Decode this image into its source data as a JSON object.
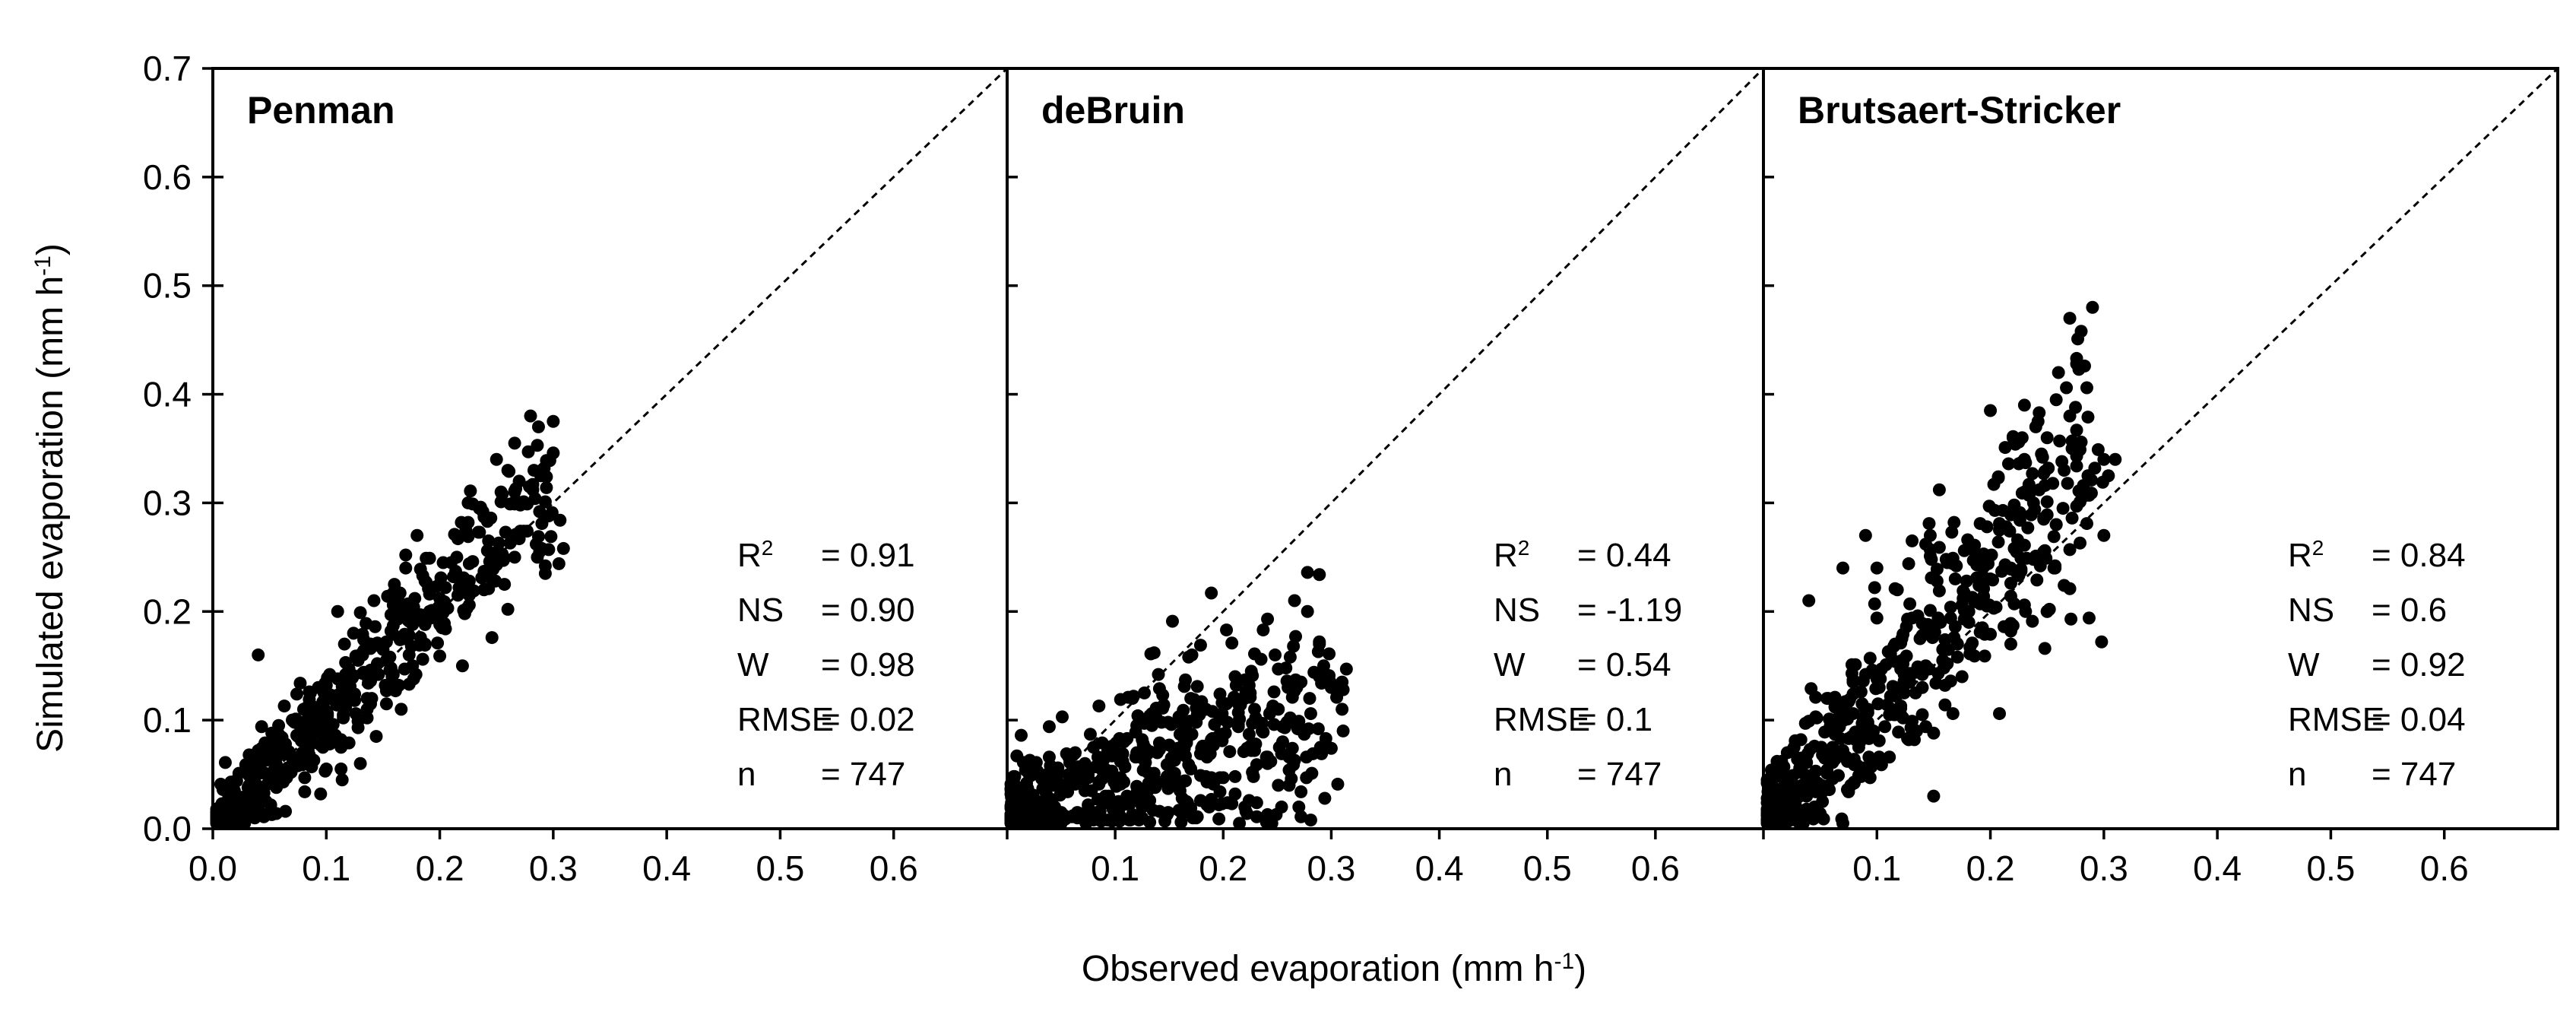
{
  "figure": {
    "ylabel": "Simulated evaporation (mm h",
    "ylabel_sup": "-1",
    "ylabel_end": ")",
    "xlabel": "Observed evaporation (mm h",
    "xlabel_sup": "-1",
    "xlabel_end": ")"
  },
  "chart_data": [
    {
      "type": "scatter",
      "title": "Penman",
      "xlim": [
        0,
        0.7
      ],
      "ylim": [
        0,
        0.7
      ],
      "x_tick_labels": [
        "0.0",
        "0.1",
        "0.2",
        "0.3",
        "0.4",
        "0.5",
        "0.6"
      ],
      "y_tick_labels": [
        "0.0",
        "0.1",
        "0.2",
        "0.3",
        "0.4",
        "0.5",
        "0.6",
        "0.7"
      ],
      "one_to_one_line": true,
      "stats": [
        {
          "label": "R",
          "sup": "2",
          "value": "= 0.91"
        },
        {
          "label": "NS",
          "sup": "",
          "value": "= 0.90"
        },
        {
          "label": "W",
          "sup": "",
          "value": "= 0.98"
        },
        {
          "label": "RMSE",
          "sup": "",
          "value": "= 0.02"
        },
        {
          "label": "n",
          "sup": "",
          "value": "= 747"
        }
      ],
      "generator": {
        "seed": 11,
        "n": 520,
        "slope": 1.07,
        "intercept": 0.0,
        "noise": 0.02,
        "noise_growth": 0.05,
        "xmax": 0.31
      },
      "outliers": [
        [
          0.04,
          0.16
        ],
        [
          0.28,
          0.38
        ],
        [
          0.3,
          0.375
        ],
        [
          0.22,
          0.15
        ],
        [
          0.13,
          0.06
        ],
        [
          0.25,
          0.34
        ],
        [
          0.26,
          0.33
        ],
        [
          0.27,
          0.32
        ],
        [
          0.225,
          0.3
        ],
        [
          0.235,
          0.295
        ],
        [
          0.11,
          0.2
        ],
        [
          0.16,
          0.225
        ],
        [
          0.17,
          0.24
        ]
      ],
      "x": [],
      "y": []
    },
    {
      "type": "scatter",
      "title": "deBruin",
      "xlim": [
        0,
        0.7
      ],
      "ylim": [
        0,
        0.7
      ],
      "x_tick_labels": [
        "",
        "0.1",
        "0.2",
        "0.3",
        "0.4",
        "0.5",
        "0.6"
      ],
      "y_tick_labels": [],
      "one_to_one_line": true,
      "stats": [
        {
          "label": "R",
          "sup": "2",
          "value": "= 0.44"
        },
        {
          "label": "NS",
          "sup": "",
          "value": "= -1.19"
        },
        {
          "label": "W",
          "sup": "",
          "value": "= 0.54"
        },
        {
          "label": "RMSE",
          "sup": "",
          "value": "= 0.1"
        },
        {
          "label": "n",
          "sup": "",
          "value": "= 747"
        }
      ],
      "generator": {
        "seed": 23,
        "n": 560,
        "slope": 0.4,
        "intercept": 0.0,
        "noise": 0.03,
        "noise_growth": 0.08,
        "xmax": 0.32
      },
      "outliers": [
        [
          0.31,
          0.135
        ],
        [
          0.3,
          0.13
        ],
        [
          0.28,
          0.12
        ],
        [
          0.26,
          0.13
        ],
        [
          0.2,
          0.115
        ],
        [
          0.17,
          0.12
        ],
        [
          0.22,
          0.02
        ],
        [
          0.27,
          0.02
        ],
        [
          0.02,
          0.01
        ],
        [
          0.05,
          0.005
        ]
      ],
      "x": [],
      "y": []
    },
    {
      "type": "scatter",
      "title": "Brutsaert-Stricker",
      "xlim": [
        0,
        0.7
      ],
      "ylim": [
        0,
        0.7
      ],
      "x_tick_labels": [
        "",
        "0.1",
        "0.2",
        "0.3",
        "0.4",
        "0.5",
        "0.6"
      ],
      "y_tick_labels": [],
      "one_to_one_line": true,
      "stats": [
        {
          "label": "R",
          "sup": "2",
          "value": "= 0.84"
        },
        {
          "label": "NS",
          "sup": "",
          "value": "= 0.6"
        },
        {
          "label": "W",
          "sup": "",
          "value": "= 0.92"
        },
        {
          "label": "RMSE",
          "sup": "",
          "value": "= 0.04"
        },
        {
          "label": "n",
          "sup": "",
          "value": "= 747"
        }
      ],
      "generator": {
        "seed": 37,
        "n": 560,
        "slope": 1.2,
        "intercept": 0.0,
        "noise": 0.03,
        "noise_growth": 0.1,
        "xmax": 0.31
      },
      "outliers": [
        [
          0.29,
          0.48
        ],
        [
          0.27,
          0.47
        ],
        [
          0.26,
          0.42
        ],
        [
          0.2,
          0.385
        ],
        [
          0.23,
          0.34
        ],
        [
          0.25,
          0.36
        ],
        [
          0.24,
          0.37
        ],
        [
          0.04,
          0.21
        ],
        [
          0.15,
          0.03
        ],
        [
          0.07,
          0.24
        ],
        [
          0.09,
          0.27
        ],
        [
          0.3,
          0.34
        ],
        [
          0.31,
          0.34
        ],
        [
          0.27,
          0.38
        ],
        [
          0.22,
          0.36
        ],
        [
          0.1,
          0.24
        ]
      ],
      "x": [],
      "y": []
    }
  ]
}
